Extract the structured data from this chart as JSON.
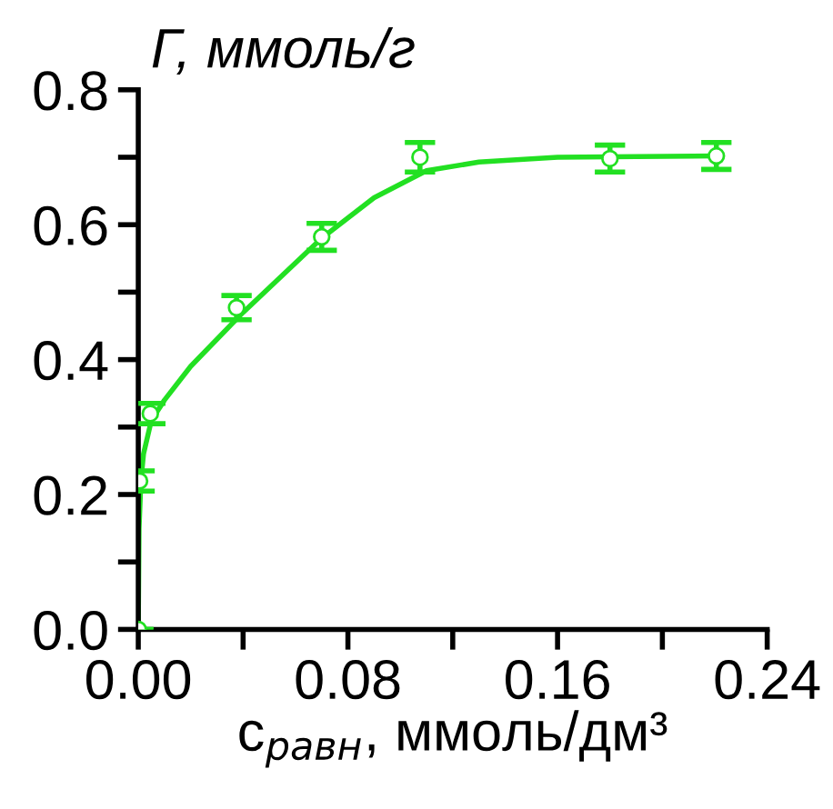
{
  "chart_data": {
    "type": "scatter",
    "ylabel": "Г, ммоль/г",
    "xlabel": "с$_{равн}$, ммоль/дм³",
    "xlim": [
      0,
      0.24
    ],
    "ylim": [
      0,
      0.8
    ],
    "xticks": [
      {
        "value": 0,
        "label": "0.00"
      },
      {
        "value": 0.04,
        "label": null
      },
      0.08,
      {
        "value": 0.12,
        "label": null
      },
      0.16,
      {
        "value": 0.2,
        "label": null
      },
      0.24
    ],
    "yticks": [
      {
        "value": 0,
        "label": "0.0"
      },
      {
        "value": 0.1,
        "label": null
      },
      0.2,
      {
        "value": 0.3,
        "label": null
      },
      0.4,
      {
        "value": 0.5,
        "label": null
      },
      0.6,
      {
        "value": 0.7,
        "label": null
      },
      0.8
    ],
    "grid": false,
    "legend": false,
    "series": [
      {
        "color": "#22e022",
        "marker": "circle",
        "x": [
          0,
          0.0005,
          0.0046,
          0.0375,
          0.07,
          0.1075,
          0.18,
          0.2206
        ],
        "values": [
          0,
          0.22,
          0.32,
          0.477,
          0.582,
          0.7,
          0.698,
          0.702
        ],
        "errors": [
          null,
          0.015,
          0.015,
          0.018,
          0.02,
          0.022,
          0.02,
          0.02
        ]
      },
      {
        "type": "line",
        "color": "#22e022",
        "line_style": "solid",
        "x": [
          0,
          0.0003,
          0.001,
          0.002,
          0.005,
          0.01,
          0.02,
          0.04,
          0.07,
          0.09,
          0.11,
          0.13,
          0.16,
          0.19,
          0.22
        ],
        "values": [
          0,
          0.15,
          0.22,
          0.26,
          0.31,
          0.34,
          0.39,
          0.47,
          0.58,
          0.64,
          0.68,
          0.693,
          0.7,
          0.701,
          0.702
        ]
      }
    ]
  }
}
